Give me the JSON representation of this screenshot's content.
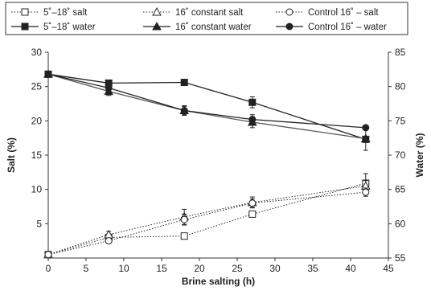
{
  "chart_data": {
    "type": "line",
    "title": "",
    "xlabel": "Brine salting (h)",
    "ylabel_left": "Salt (%)",
    "ylabel_right": "Water (%)",
    "xlim": [
      0,
      45
    ],
    "ylim_left": [
      0,
      30
    ],
    "ylim_right": [
      55,
      85
    ],
    "x_ticks": [
      "0",
      "5",
      "10",
      "15",
      "20",
      "25",
      "30",
      "35",
      "40",
      "45"
    ],
    "y_left_ticks": [
      "5",
      "10",
      "15",
      "20",
      "25",
      "30"
    ],
    "y_right_ticks": [
      "55",
      "60",
      "65",
      "70",
      "75",
      "80",
      "85"
    ],
    "grid": false,
    "legend_position": "top",
    "series": [
      {
        "name": "5˚–18˚ salt",
        "axis": "left",
        "style": "dotted",
        "marker": "square-open",
        "x": [
          0,
          8,
          18,
          27,
          42
        ],
        "values": [
          0.5,
          3.0,
          3.2,
          6.4,
          10.9
        ],
        "err": [
          0,
          0,
          0.3,
          0.4,
          1.4
        ]
      },
      {
        "name": "5˚–18˚ water",
        "axis": "right",
        "style": "solid",
        "marker": "square-filled",
        "x": [
          0,
          8,
          18,
          27,
          42
        ],
        "values": [
          81.8,
          80.5,
          80.6,
          77.7,
          72.3
        ],
        "err": [
          0,
          0.3,
          0,
          0.8,
          1.6
        ]
      },
      {
        "name": "16˚ constant salt",
        "axis": "left",
        "style": "dotted",
        "marker": "triangle-open",
        "x": [
          0,
          8,
          18,
          27,
          42
        ],
        "values": [
          0.5,
          3.4,
          6.0,
          8.1,
          10.5
        ],
        "err": [
          0,
          0.5,
          1.1,
          0.8,
          0.8
        ]
      },
      {
        "name": "16˚ constant water",
        "axis": "right",
        "style": "solid",
        "marker": "triangle-filled",
        "x": [
          0,
          8,
          18,
          27,
          42
        ],
        "values": [
          81.8,
          79.3,
          76.5,
          74.8,
          72.4
        ],
        "err": [
          0,
          0.6,
          0.6,
          0.8,
          0
        ]
      },
      {
        "name": "Control 16˚ – salt",
        "axis": "left",
        "style": "dotted",
        "marker": "circle-open",
        "x": [
          0,
          8,
          18,
          27,
          42
        ],
        "values": [
          0.5,
          2.5,
          5.6,
          8.0,
          9.6
        ],
        "err": [
          0,
          0.3,
          0.8,
          0.6,
          0.6
        ]
      },
      {
        "name": "Control 16˚ – water",
        "axis": "right",
        "style": "solid",
        "marker": "circle-filled",
        "x": [
          0,
          8,
          18,
          27,
          42
        ],
        "values": [
          81.8,
          79.8,
          76.5,
          75.2,
          74.0
        ],
        "err": [
          0,
          0.4,
          0.7,
          0.7,
          0
        ]
      }
    ]
  }
}
